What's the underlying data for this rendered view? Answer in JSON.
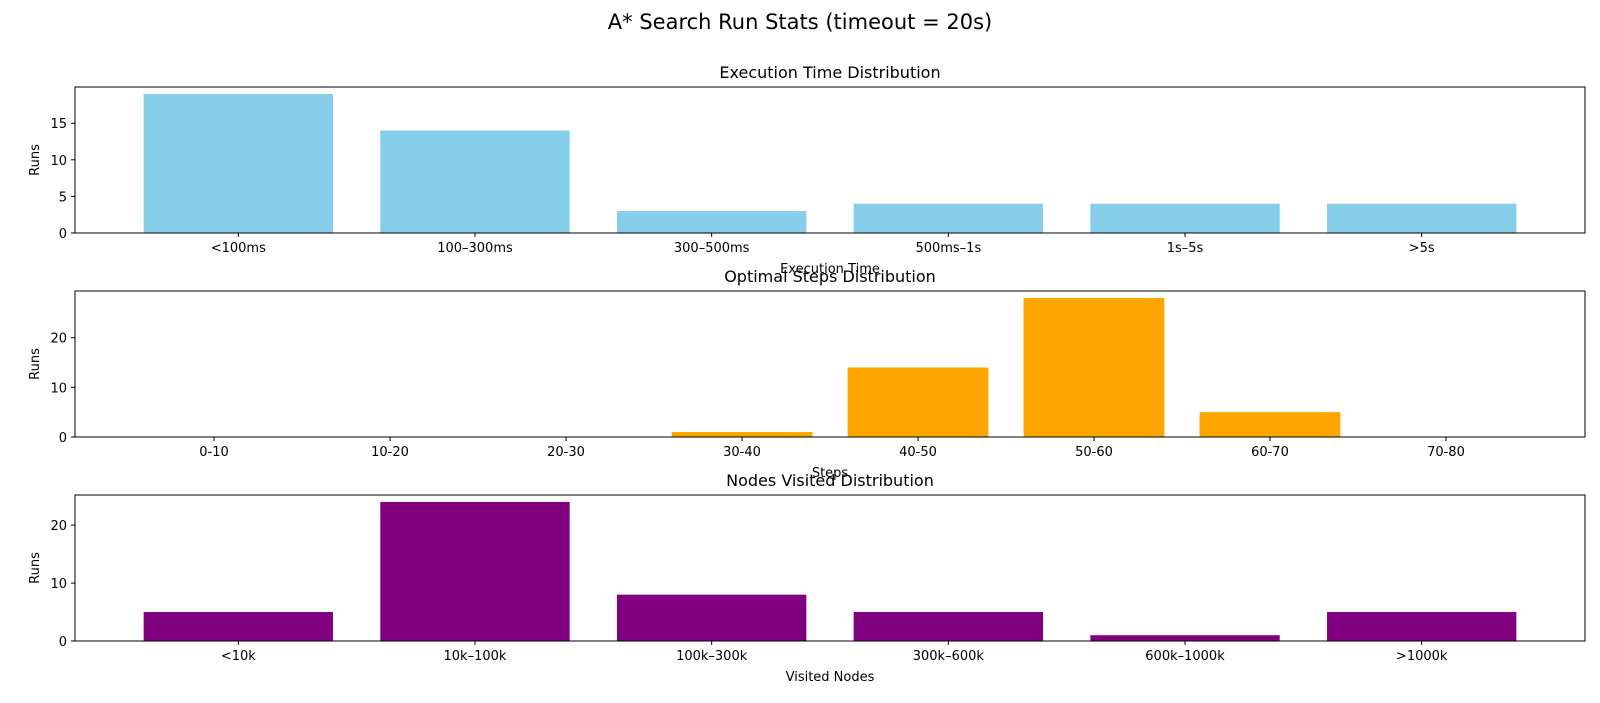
{
  "figure_title": "A* Search Run Stats (timeout = 20s)",
  "chart_data": [
    {
      "type": "bar",
      "title": "Execution Time Distribution",
      "xlabel": "Execution Time",
      "ylabel": "Runs",
      "categories": [
        "<100ms",
        "100–300ms",
        "300–500ms",
        "500ms–1s",
        "1s–5s",
        ">5s"
      ],
      "values": [
        19,
        14,
        3,
        4,
        4,
        4
      ],
      "ylim": [
        0,
        19.95
      ],
      "yticks": [
        0,
        5,
        10,
        15
      ],
      "color": "#87CEEB",
      "grid": false
    },
    {
      "type": "bar",
      "title": "Optimal Steps Distribution",
      "xlabel": "Steps",
      "ylabel": "Runs",
      "categories": [
        "0-10",
        "10-20",
        "20-30",
        "30-40",
        "40-50",
        "50-60",
        "60-70",
        "70-80"
      ],
      "values": [
        0,
        0,
        0,
        1,
        14,
        28,
        5,
        0
      ],
      "ylim": [
        0,
        29.4
      ],
      "yticks": [
        0,
        10,
        20
      ],
      "color": "#FFA500",
      "grid": false
    },
    {
      "type": "bar",
      "title": "Nodes Visited Distribution",
      "xlabel": "Visited Nodes",
      "ylabel": "Runs",
      "categories": [
        "<10k",
        "10k–100k",
        "100k–300k",
        "300k–600k",
        "600k–1000k",
        ">1000k"
      ],
      "values": [
        5,
        24,
        8,
        5,
        1,
        5
      ],
      "ylim": [
        0,
        25.2
      ],
      "yticks": [
        0,
        10,
        20
      ],
      "color": "#800080",
      "grid": false
    }
  ]
}
